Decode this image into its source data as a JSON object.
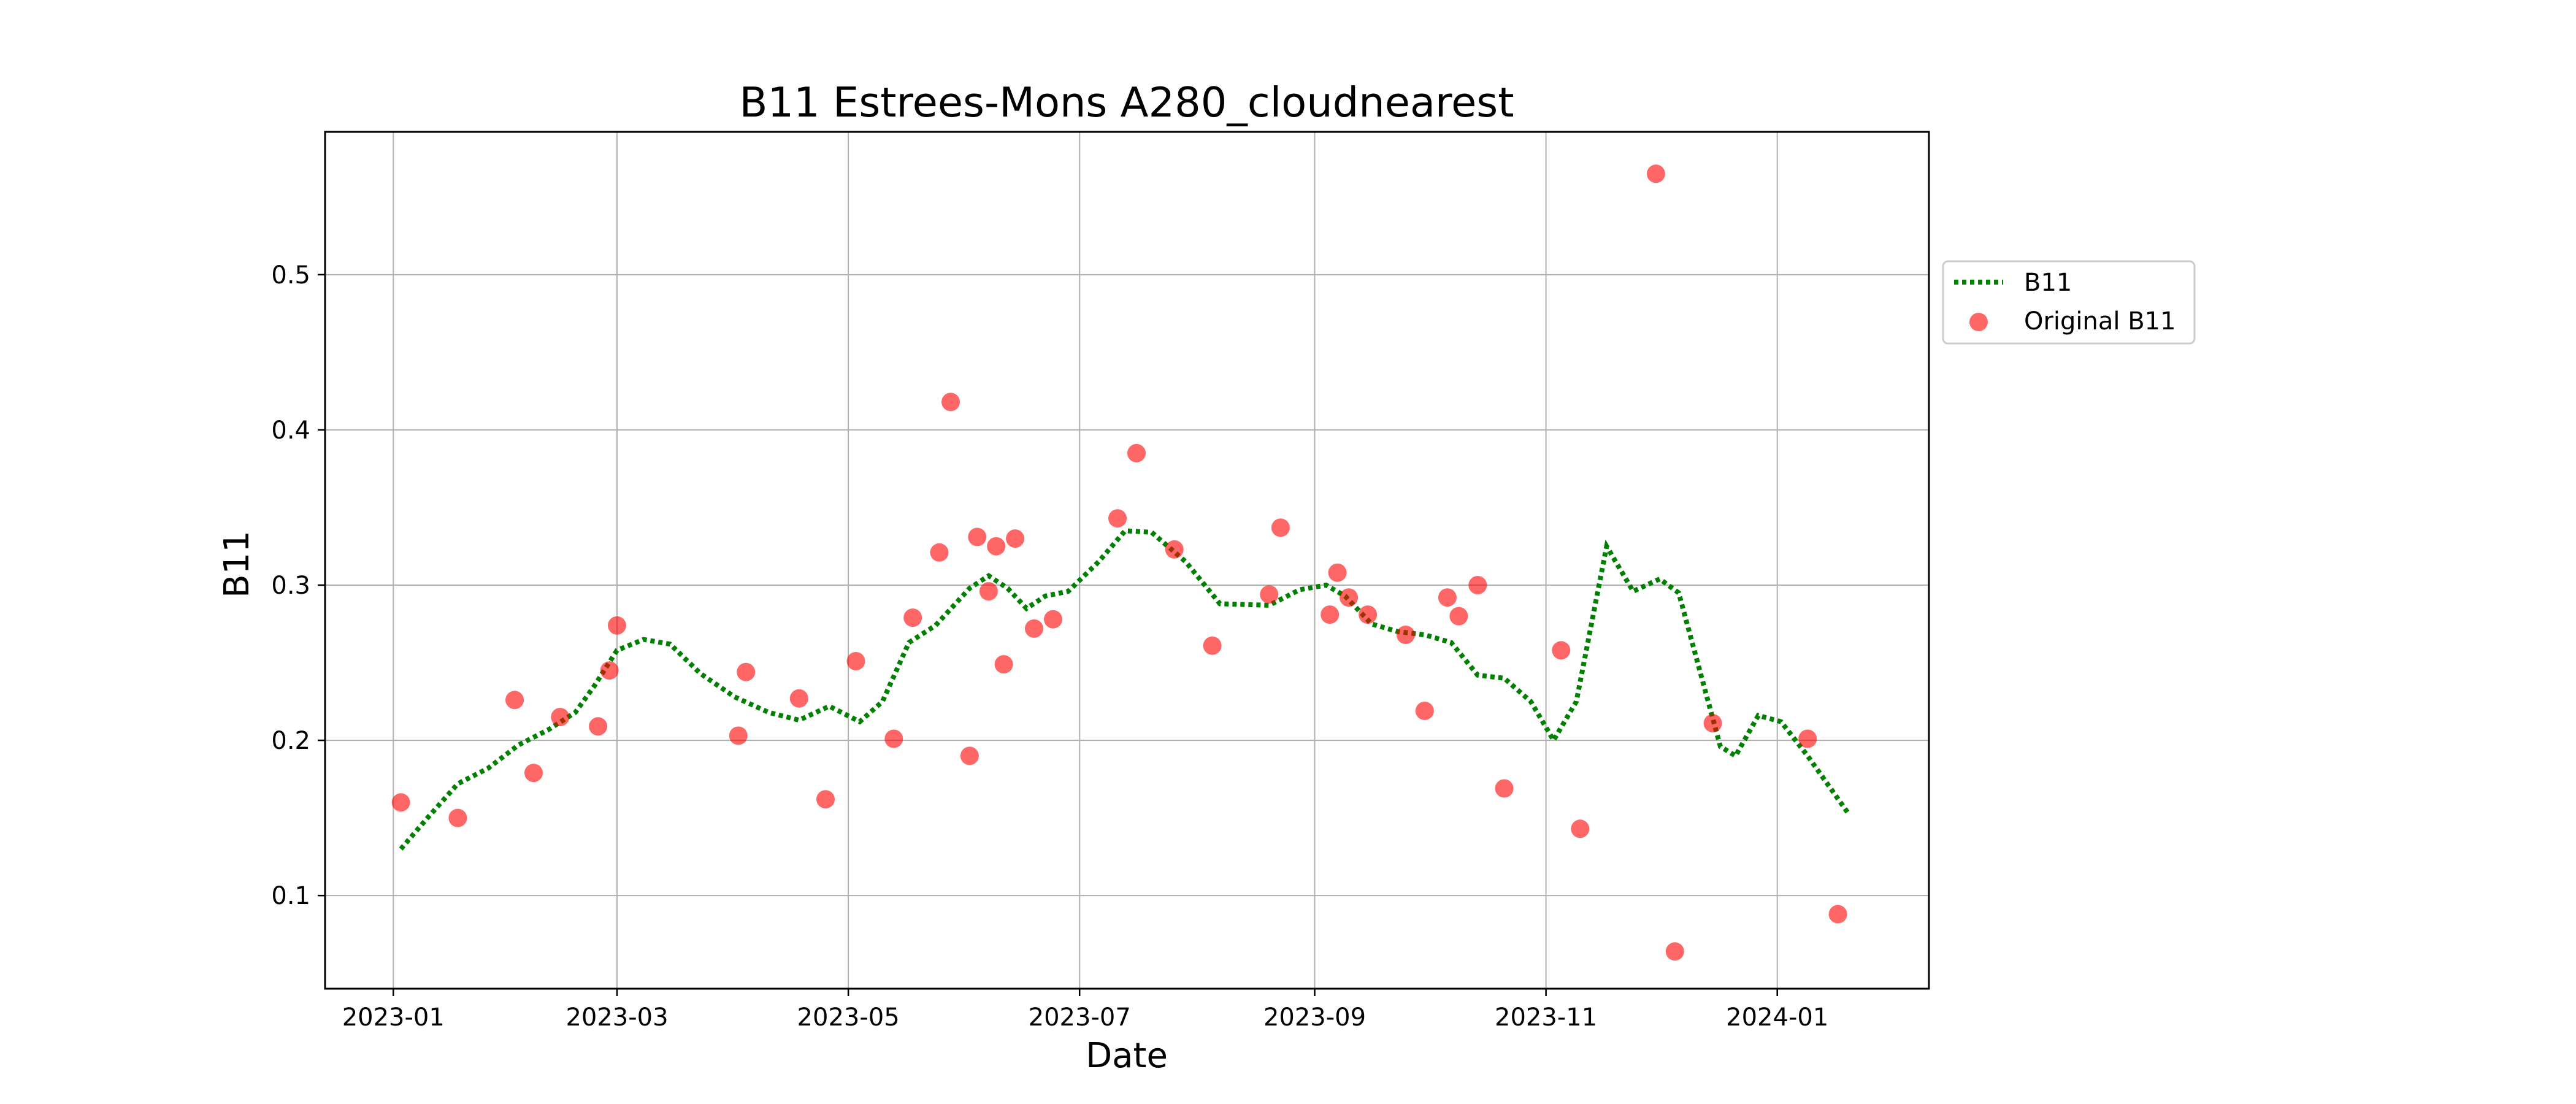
{
  "chart_data": {
    "type": "scatter",
    "title": "B11 Estrees-Mons A280_cloudnearest",
    "xlabel": "Date",
    "ylabel": "B11",
    "grid": true,
    "legend_position": "outside right",
    "xlim": [
      "2022-12-14",
      "2024-02-10"
    ],
    "ylim": [
      0.04,
      0.592
    ],
    "x_ticks": [
      "2023-01-01",
      "2023-03-01",
      "2023-05-01",
      "2023-07-01",
      "2023-09-01",
      "2023-11-01",
      "2024-01-01"
    ],
    "x_tick_labels": [
      "2023-01",
      "2023-03",
      "2023-05",
      "2023-07",
      "2023-09",
      "2023-11",
      "2024-01"
    ],
    "y_ticks": [
      0.1,
      0.2,
      0.3,
      0.4,
      0.5
    ],
    "y_tick_labels": [
      "0.1",
      "0.2",
      "0.3",
      "0.4",
      "0.5"
    ],
    "series": [
      {
        "name": "B11",
        "style": "dotted-line",
        "color": "#008000",
        "points": [
          [
            "2023-01-03",
            0.13
          ],
          [
            "2023-01-10",
            0.15
          ],
          [
            "2023-01-18",
            0.172
          ],
          [
            "2023-01-26",
            0.182
          ],
          [
            "2023-02-03",
            0.197
          ],
          [
            "2023-02-11",
            0.207
          ],
          [
            "2023-02-18",
            0.218
          ],
          [
            "2023-02-23",
            0.235
          ],
          [
            "2023-03-01",
            0.258
          ],
          [
            "2023-03-08",
            0.265
          ],
          [
            "2023-03-15",
            0.262
          ],
          [
            "2023-03-23",
            0.243
          ],
          [
            "2023-04-01",
            0.228
          ],
          [
            "2023-04-10",
            0.218
          ],
          [
            "2023-04-18",
            0.213
          ],
          [
            "2023-04-26",
            0.222
          ],
          [
            "2023-05-04",
            0.212
          ],
          [
            "2023-05-10",
            0.225
          ],
          [
            "2023-05-17",
            0.263
          ],
          [
            "2023-05-24",
            0.274
          ],
          [
            "2023-06-02",
            0.298
          ],
          [
            "2023-06-07",
            0.306
          ],
          [
            "2023-06-12",
            0.298
          ],
          [
            "2023-06-17",
            0.285
          ],
          [
            "2023-06-22",
            0.293
          ],
          [
            "2023-06-28",
            0.296
          ],
          [
            "2023-07-06",
            0.315
          ],
          [
            "2023-07-13",
            0.335
          ],
          [
            "2023-07-20",
            0.334
          ],
          [
            "2023-07-29",
            0.315
          ],
          [
            "2023-08-07",
            0.288
          ],
          [
            "2023-08-20",
            0.287
          ],
          [
            "2023-08-28",
            0.297
          ],
          [
            "2023-09-04",
            0.3
          ],
          [
            "2023-09-09",
            0.293
          ],
          [
            "2023-09-16",
            0.275
          ],
          [
            "2023-09-23",
            0.27
          ],
          [
            "2023-09-30",
            0.268
          ],
          [
            "2023-10-07",
            0.263
          ],
          [
            "2023-10-14",
            0.242
          ],
          [
            "2023-10-21",
            0.24
          ],
          [
            "2023-10-28",
            0.225
          ],
          [
            "2023-11-03",
            0.2
          ],
          [
            "2023-11-09",
            0.225
          ],
          [
            "2023-11-17",
            0.325
          ],
          [
            "2023-11-24",
            0.296
          ],
          [
            "2023-12-01",
            0.304
          ],
          [
            "2023-12-06",
            0.295
          ],
          [
            "2023-12-11",
            0.25
          ],
          [
            "2023-12-17",
            0.196
          ],
          [
            "2023-12-21",
            0.19
          ],
          [
            "2023-12-27",
            0.216
          ],
          [
            "2024-01-02",
            0.212
          ],
          [
            "2024-01-09",
            0.19
          ],
          [
            "2024-01-20",
            0.152
          ]
        ]
      },
      {
        "name": "Original B11",
        "style": "markers",
        "color": "#ff0000",
        "points": [
          [
            "2023-01-03",
            0.16
          ],
          [
            "2023-01-18",
            0.15
          ],
          [
            "2023-02-02",
            0.226
          ],
          [
            "2023-02-07",
            0.179
          ],
          [
            "2023-02-14",
            0.215
          ],
          [
            "2023-02-24",
            0.209
          ],
          [
            "2023-02-27",
            0.245
          ],
          [
            "2023-03-01",
            0.274
          ],
          [
            "2023-04-02",
            0.203
          ],
          [
            "2023-04-04",
            0.244
          ],
          [
            "2023-04-18",
            0.227
          ],
          [
            "2023-04-25",
            0.162
          ],
          [
            "2023-05-03",
            0.251
          ],
          [
            "2023-05-13",
            0.201
          ],
          [
            "2023-05-18",
            0.279
          ],
          [
            "2023-05-25",
            0.321
          ],
          [
            "2023-05-28",
            0.418
          ],
          [
            "2023-06-02",
            0.19
          ],
          [
            "2023-06-04",
            0.331
          ],
          [
            "2023-06-07",
            0.296
          ],
          [
            "2023-06-09",
            0.325
          ],
          [
            "2023-06-11",
            0.249
          ],
          [
            "2023-06-14",
            0.33
          ],
          [
            "2023-06-19",
            0.272
          ],
          [
            "2023-06-24",
            0.278
          ],
          [
            "2023-07-11",
            0.343
          ],
          [
            "2023-07-16",
            0.385
          ],
          [
            "2023-07-26",
            0.323
          ],
          [
            "2023-08-05",
            0.261
          ],
          [
            "2023-08-20",
            0.294
          ],
          [
            "2023-08-23",
            0.337
          ],
          [
            "2023-09-05",
            0.281
          ],
          [
            "2023-09-07",
            0.308
          ],
          [
            "2023-09-10",
            0.292
          ],
          [
            "2023-09-15",
            0.281
          ],
          [
            "2023-09-25",
            0.268
          ],
          [
            "2023-09-30",
            0.219
          ],
          [
            "2023-10-06",
            0.292
          ],
          [
            "2023-10-09",
            0.28
          ],
          [
            "2023-10-14",
            0.3
          ],
          [
            "2023-10-21",
            0.169
          ],
          [
            "2023-11-05",
            0.258
          ],
          [
            "2023-11-10",
            0.143
          ],
          [
            "2023-11-30",
            0.565
          ],
          [
            "2023-12-05",
            0.064
          ],
          [
            "2023-12-15",
            0.211
          ],
          [
            "2024-01-09",
            0.201
          ],
          [
            "2024-01-17",
            0.088
          ]
        ]
      }
    ]
  }
}
